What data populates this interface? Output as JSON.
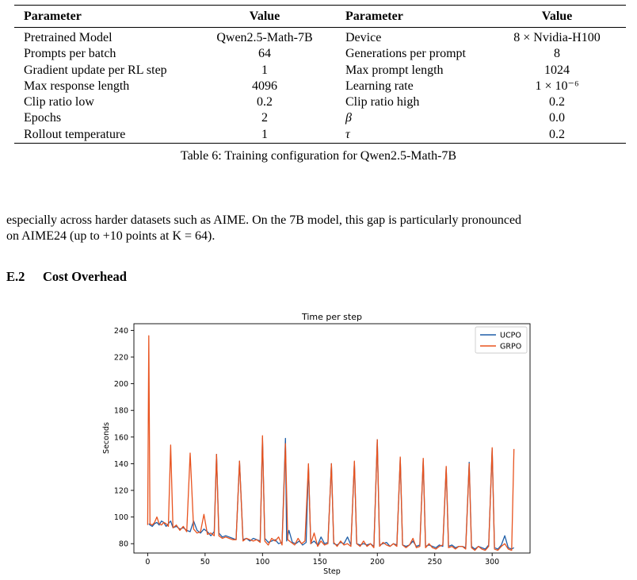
{
  "table": {
    "headers": [
      "Parameter",
      "Value",
      "Parameter",
      "Value"
    ],
    "rows": [
      [
        "Pretrained Model",
        "Qwen2.5-Math-7B",
        "Device",
        "8 × Nvidia-H100"
      ],
      [
        "Prompts per batch",
        "64",
        "Generations per prompt",
        "8"
      ],
      [
        "Gradient update per RL step",
        "1",
        "Max prompt length",
        "1024"
      ],
      [
        "Max response length",
        "4096",
        "Learning rate",
        "1 × 10⁻⁶"
      ],
      [
        "Clip ratio low",
        "0.2",
        "Clip ratio high",
        "0.2"
      ],
      [
        "Epochs",
        "2",
        "β",
        "0.0"
      ],
      [
        "Rollout temperature",
        "1",
        "τ",
        "0.2"
      ]
    ],
    "caption": "Table 6: Training configuration for Qwen2.5-Math-7B"
  },
  "paragraph": {
    "line1": "especially across harder datasets such as AIME. On the 7B model, this gap is particularly pronounced",
    "line2": "on AIME24 (up to +10 points at K = 64)."
  },
  "section": {
    "number": "E.2",
    "title": "Cost Overhead"
  },
  "chart_data": {
    "type": "line",
    "title": "Time per step",
    "xlabel": "Step",
    "ylabel": "Seconds",
    "xlim": [
      -12,
      333
    ],
    "ylim": [
      73,
      245
    ],
    "xticks": [
      0,
      50,
      100,
      150,
      200,
      250,
      300
    ],
    "yticks": [
      80,
      100,
      120,
      140,
      160,
      180,
      200,
      220,
      240
    ],
    "legend_position": "top-right",
    "colors": {
      "UCPO": "#1f5fa8",
      "GRPO": "#e8531f"
    },
    "series": [
      {
        "name": "UCPO",
        "x": [
          1,
          2,
          4,
          6,
          8,
          10,
          12,
          14,
          16,
          18,
          20,
          22,
          25,
          28,
          31,
          34,
          37,
          40,
          43,
          46,
          49,
          52,
          55,
          58,
          60,
          62,
          65,
          68,
          71,
          74,
          77,
          80,
          83,
          86,
          89,
          92,
          95,
          98,
          100,
          102,
          105,
          108,
          111,
          114,
          117,
          120,
          121,
          123,
          126,
          129,
          132,
          135,
          138,
          140,
          142,
          145,
          148,
          151,
          154,
          157,
          160,
          162,
          165,
          168,
          171,
          174,
          177,
          180,
          182,
          185,
          188,
          191,
          194,
          197,
          200,
          202,
          205,
          208,
          211,
          214,
          217,
          220,
          222,
          225,
          228,
          231,
          234,
          237,
          240,
          242,
          245,
          248,
          251,
          254,
          257,
          260,
          262,
          265,
          268,
          271,
          274,
          277,
          280,
          282,
          285,
          288,
          291,
          294,
          297,
          300,
          302,
          305,
          308,
          311,
          314,
          317,
          319
        ],
        "y": [
          95,
          94,
          93,
          95,
          96,
          94,
          97,
          96,
          93,
          95,
          97,
          92,
          93,
          91,
          92,
          90,
          89,
          97,
          90,
          88,
          91,
          89,
          86,
          89,
          147,
          88,
          85,
          86,
          85,
          84,
          83,
          142,
          83,
          84,
          82,
          84,
          83,
          82,
          159,
          84,
          81,
          82,
          83,
          80,
          81,
          159,
          82,
          90,
          81,
          80,
          82,
          79,
          81,
          139,
          80,
          82,
          79,
          85,
          80,
          81,
          140,
          80,
          79,
          81,
          80,
          85,
          79,
          141,
          80,
          79,
          80,
          79,
          80,
          78,
          158,
          79,
          80,
          81,
          78,
          80,
          79,
          144,
          79,
          78,
          79,
          82,
          78,
          79,
          143,
          78,
          79,
          78,
          77,
          79,
          78,
          137,
          78,
          79,
          77,
          78,
          78,
          77,
          141,
          78,
          76,
          78,
          77,
          76,
          79,
          151,
          77,
          76,
          79,
          86,
          77,
          76,
          77
        ]
      },
      {
        "name": "GRPO",
        "x": [
          0,
          1,
          2,
          4,
          6,
          8,
          10,
          12,
          14,
          16,
          18,
          20,
          22,
          25,
          28,
          31,
          34,
          37,
          40,
          43,
          46,
          49,
          52,
          55,
          58,
          60,
          62,
          65,
          68,
          71,
          74,
          77,
          80,
          83,
          86,
          89,
          92,
          95,
          98,
          100,
          102,
          105,
          108,
          111,
          114,
          117,
          120,
          122,
          125,
          128,
          131,
          134,
          137,
          140,
          142,
          145,
          148,
          151,
          154,
          157,
          160,
          162,
          165,
          168,
          171,
          174,
          177,
          180,
          182,
          185,
          188,
          191,
          194,
          197,
          200,
          202,
          205,
          208,
          211,
          214,
          217,
          220,
          222,
          225,
          228,
          231,
          234,
          237,
          240,
          242,
          245,
          248,
          251,
          254,
          257,
          260,
          262,
          265,
          268,
          271,
          274,
          277,
          280,
          282,
          285,
          288,
          291,
          294,
          297,
          300,
          302,
          305,
          308,
          311,
          314,
          317,
          319
        ],
        "y": [
          94,
          236,
          95,
          94,
          96,
          100,
          95,
          94,
          96,
          95,
          93,
          154,
          92,
          94,
          90,
          93,
          89,
          148,
          91,
          88,
          89,
          102,
          87,
          88,
          86,
          147,
          86,
          84,
          85,
          84,
          83,
          83,
          142,
          82,
          84,
          83,
          82,
          83,
          81,
          161,
          82,
          79,
          84,
          82,
          85,
          79,
          155,
          83,
          81,
          79,
          84,
          80,
          82,
          140,
          80,
          88,
          78,
          82,
          79,
          80,
          140,
          81,
          78,
          82,
          79,
          80,
          78,
          142,
          80,
          78,
          82,
          78,
          80,
          77,
          158,
          78,
          81,
          79,
          78,
          80,
          78,
          145,
          79,
          77,
          79,
          84,
          77,
          78,
          144,
          77,
          80,
          77,
          76,
          78,
          79,
          138,
          77,
          78,
          76,
          78,
          78,
          76,
          140,
          77,
          75,
          78,
          76,
          75,
          78,
          152,
          76,
          75,
          78,
          80,
          76,
          75,
          151
        ]
      }
    ]
  }
}
